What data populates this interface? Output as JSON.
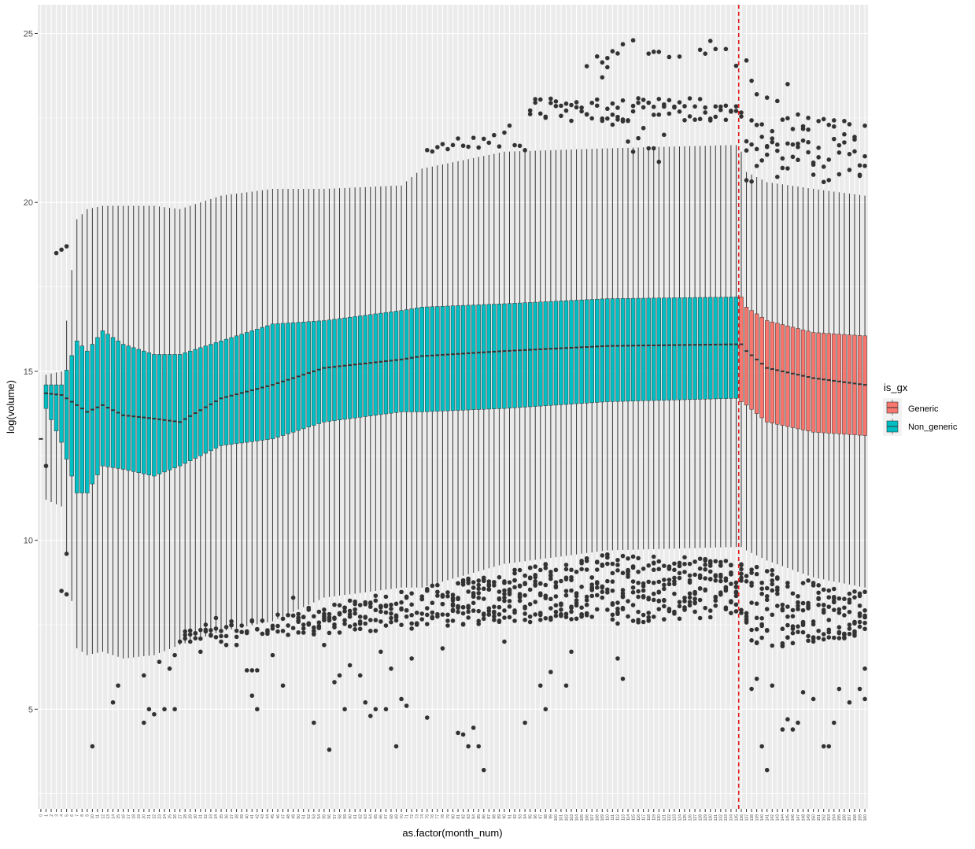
{
  "chart_data": {
    "type": "boxplot",
    "xlabel": "as.factor(month_num)",
    "ylabel": "log(volume)",
    "x_categories_range": [
      0,
      160
    ],
    "ylim": [
      2.05,
      25.85
    ],
    "y_ticks": [
      5,
      10,
      15,
      20,
      25
    ],
    "grid": true,
    "legend": {
      "title": "is_gx",
      "position": "right",
      "entries": [
        {
          "name": "Generic",
          "color": "#F8766D"
        },
        {
          "name": "Non_generic",
          "color": "#00BFC4"
        }
      ]
    },
    "vline": {
      "x": 136,
      "color": "#E41A1C",
      "style": "dashed"
    },
    "series": [
      {
        "name": "Non_generic",
        "color": "#00BFC4",
        "months": [
          0,
          135
        ],
        "box_keypoints": [
          {
            "month": 0,
            "q1": 13.0,
            "median": 13.0,
            "q3": 13.0,
            "wlo": 13.0,
            "whi": 13.0
          },
          {
            "month": 1,
            "q1": 13.9,
            "median": 14.35,
            "q3": 14.6,
            "wlo": 11.2,
            "whi": 14.9
          },
          {
            "month": 4,
            "q1": 12.9,
            "median": 14.3,
            "q3": 14.6,
            "wlo": 11.0,
            "whi": 15.0
          },
          {
            "month": 7,
            "q1": 11.4,
            "median": 14.0,
            "q3": 15.9,
            "wlo": 6.8,
            "whi": 19.5
          },
          {
            "month": 9,
            "q1": 11.4,
            "median": 13.8,
            "q3": 15.6,
            "wlo": 6.6,
            "whi": 19.8
          },
          {
            "month": 12,
            "q1": 12.2,
            "median": 14.0,
            "q3": 16.2,
            "wlo": 6.7,
            "whi": 19.9
          },
          {
            "month": 16,
            "q1": 12.1,
            "median": 13.7,
            "q3": 15.8,
            "wlo": 6.5,
            "whi": 19.9
          },
          {
            "month": 22,
            "q1": 11.9,
            "median": 13.6,
            "q3": 15.5,
            "wlo": 6.6,
            "whi": 19.9
          },
          {
            "month": 27,
            "q1": 12.2,
            "median": 13.5,
            "q3": 15.5,
            "wlo": 6.9,
            "whi": 19.8
          },
          {
            "month": 35,
            "q1": 12.8,
            "median": 14.2,
            "q3": 15.9,
            "wlo": 7.3,
            "whi": 20.2
          },
          {
            "month": 45,
            "q1": 13.0,
            "median": 14.6,
            "q3": 16.4,
            "wlo": 7.6,
            "whi": 20.4
          },
          {
            "month": 55,
            "q1": 13.5,
            "median": 15.1,
            "q3": 16.5,
            "wlo": 8.3,
            "whi": 20.4
          },
          {
            "month": 70,
            "q1": 13.8,
            "median": 15.35,
            "q3": 16.8,
            "wlo": 8.6,
            "whi": 20.5
          },
          {
            "month": 74,
            "q1": 13.8,
            "median": 15.45,
            "q3": 16.9,
            "wlo": 8.6,
            "whi": 21.0
          },
          {
            "month": 90,
            "q1": 13.9,
            "median": 15.6,
            "q3": 17.0,
            "wlo": 9.3,
            "whi": 21.5
          },
          {
            "month": 110,
            "q1": 14.1,
            "median": 15.75,
            "q3": 17.15,
            "wlo": 9.7,
            "whi": 21.6
          },
          {
            "month": 135,
            "q1": 14.2,
            "median": 15.8,
            "q3": 17.2,
            "wlo": 9.8,
            "whi": 21.7
          }
        ]
      },
      {
        "name": "Generic",
        "color": "#F8766D",
        "months": [
          136,
          160
        ],
        "box_keypoints": [
          {
            "month": 136,
            "q1": 14.1,
            "median": 15.8,
            "q3": 17.2,
            "wlo": 9.8,
            "whi": 21.5
          },
          {
            "month": 137,
            "q1": 14.0,
            "median": 15.6,
            "q3": 16.9,
            "wlo": 9.7,
            "whi": 20.9
          },
          {
            "month": 141,
            "q1": 13.5,
            "median": 15.1,
            "q3": 16.5,
            "wlo": 9.4,
            "whi": 20.6
          },
          {
            "month": 150,
            "q1": 13.2,
            "median": 14.8,
            "q3": 16.15,
            "wlo": 8.9,
            "whi": 20.4
          },
          {
            "month": 160,
            "q1": 13.1,
            "median": 14.6,
            "q3": 16.05,
            "wlo": 8.6,
            "whi": 20.2
          }
        ]
      }
    ],
    "outlier_points": [
      [
        1,
        12.2
      ],
      [
        3,
        18.5
      ],
      [
        4,
        18.6
      ],
      [
        5,
        18.7
      ],
      [
        4,
        8.5
      ],
      [
        5,
        9.6
      ],
      [
        5,
        8.4
      ],
      [
        10,
        3.9
      ],
      [
        14,
        5.2
      ],
      [
        15,
        5.7
      ],
      [
        20,
        6.0
      ],
      [
        20,
        4.6
      ],
      [
        21,
        5.0
      ],
      [
        22,
        4.85
      ],
      [
        24,
        5.0
      ],
      [
        25,
        6.2
      ],
      [
        26,
        6.6
      ],
      [
        26,
        5.0
      ],
      [
        23,
        6.4
      ],
      [
        27,
        7.0
      ],
      [
        28,
        7.3
      ],
      [
        29,
        7.0
      ],
      [
        30,
        7.1
      ],
      [
        31,
        6.7
      ],
      [
        32,
        7.5
      ],
      [
        33,
        7.2
      ],
      [
        34,
        7.7
      ],
      [
        35,
        7.0
      ],
      [
        36,
        6.9
      ],
      [
        37,
        7.6
      ],
      [
        38,
        6.9
      ],
      [
        40,
        6.15
      ],
      [
        41,
        6.15
      ],
      [
        42,
        6.15
      ],
      [
        41,
        5.4
      ],
      [
        42,
        5.0
      ],
      [
        44,
        7.3
      ],
      [
        45,
        6.6
      ],
      [
        46,
        7.3
      ],
      [
        47,
        5.7
      ],
      [
        48,
        7.2
      ],
      [
        49,
        8.3
      ],
      [
        50,
        7.7
      ],
      [
        52,
        8.0
      ],
      [
        53,
        4.6
      ],
      [
        55,
        6.9
      ],
      [
        56,
        3.8
      ],
      [
        57,
        5.8
      ],
      [
        58,
        6.0
      ],
      [
        59,
        5.0
      ],
      [
        60,
        6.3
      ],
      [
        61,
        7.5
      ],
      [
        62,
        6.0
      ],
      [
        63,
        5.2
      ],
      [
        64,
        4.8
      ],
      [
        65,
        5.0
      ],
      [
        66,
        6.7
      ],
      [
        67,
        5.0
      ],
      [
        68,
        6.2
      ],
      [
        69,
        3.9
      ],
      [
        70,
        5.3
      ],
      [
        71,
        5.1
      ],
      [
        72,
        6.5
      ],
      [
        75,
        4.75
      ],
      [
        78,
        6.8
      ],
      [
        81,
        4.3
      ],
      [
        82,
        4.25
      ],
      [
        83,
        3.9
      ],
      [
        84,
        4.45
      ],
      [
        85,
        3.9
      ],
      [
        86,
        3.2
      ],
      [
        90,
        7.0
      ],
      [
        94,
        4.6
      ],
      [
        97,
        5.7
      ],
      [
        98,
        5.0
      ],
      [
        99,
        6.1
      ],
      [
        102,
        5.7
      ],
      [
        103,
        6.7
      ],
      [
        112,
        6.5
      ],
      [
        113,
        5.9
      ],
      [
        138,
        5.6
      ],
      [
        139,
        5.9
      ],
      [
        140,
        3.9
      ],
      [
        141,
        3.2
      ],
      [
        142,
        5.7
      ],
      [
        144,
        4.4
      ],
      [
        145,
        4.7
      ],
      [
        146,
        4.4
      ],
      [
        147,
        4.6
      ],
      [
        148,
        5.5
      ],
      [
        150,
        5.3
      ],
      [
        152,
        3.9
      ],
      [
        153,
        3.9
      ],
      [
        154,
        4.6
      ],
      [
        155,
        5.6
      ],
      [
        157,
        5.2
      ],
      [
        159,
        5.6
      ],
      [
        160,
        5.3
      ],
      [
        160,
        6.2
      ],
      [
        109,
        23.7
      ],
      [
        110,
        24.0
      ],
      [
        111,
        22.3
      ],
      [
        112,
        22.8
      ],
      [
        113,
        22.4
      ],
      [
        114,
        21.8
      ],
      [
        115,
        21.5
      ],
      [
        116,
        21.9
      ],
      [
        117,
        22.2
      ],
      [
        118,
        21.6
      ],
      [
        119,
        21.6
      ],
      [
        120,
        21.2
      ],
      [
        121,
        22.0
      ],
      [
        137,
        24.2
      ],
      [
        138,
        23.6
      ],
      [
        139,
        23.2
      ],
      [
        141,
        23.1
      ],
      [
        143,
        23.0
      ],
      [
        145,
        23.5
      ],
      [
        147,
        22.6
      ],
      [
        149,
        22.5
      ]
    ]
  }
}
